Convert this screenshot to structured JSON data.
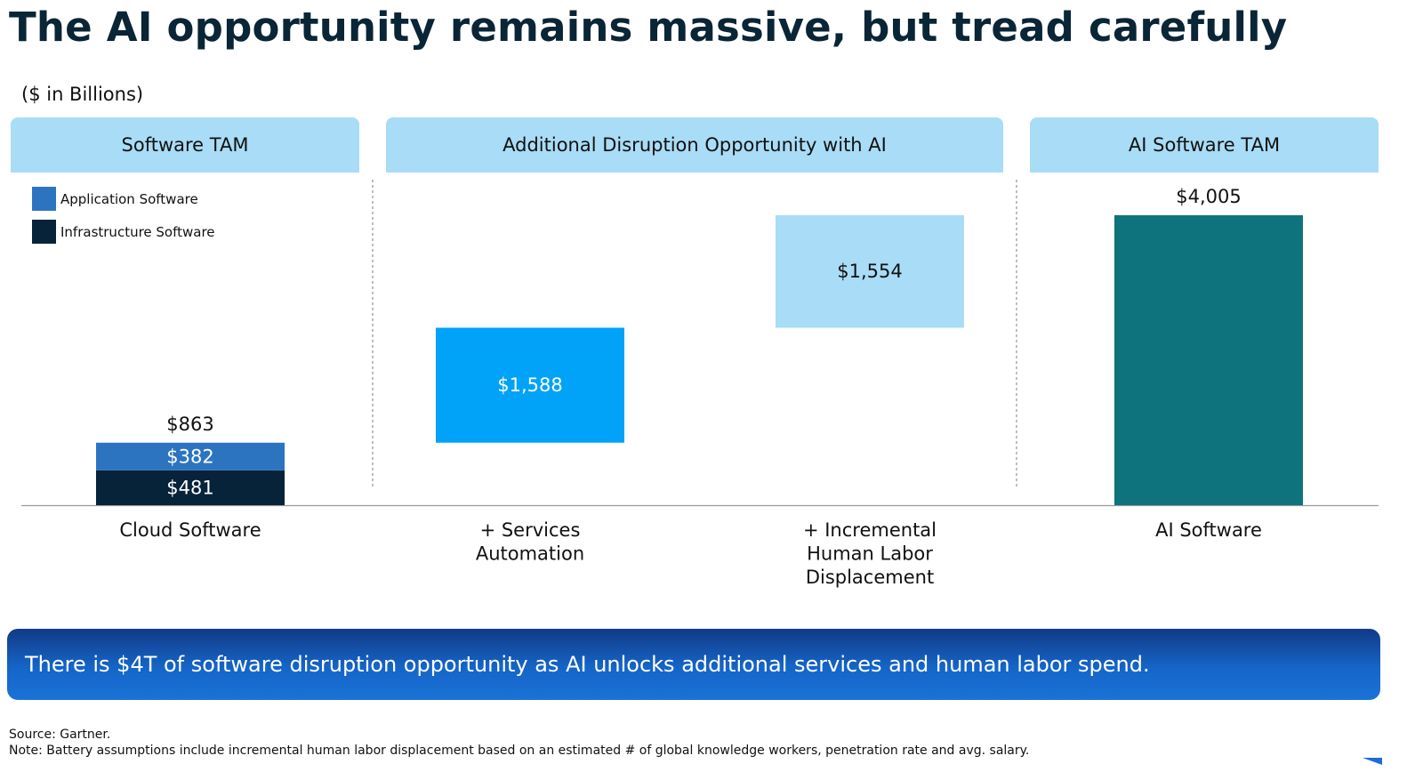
{
  "title": "The AI opportunity remains massive, but tread carefully",
  "units_note": "($ in Billions)",
  "sections": [
    {
      "label": "Software TAM"
    },
    {
      "label": "Additional Disruption Opportunity with AI"
    },
    {
      "label": "AI Software TAM"
    }
  ],
  "legend": [
    {
      "label": "Application Software",
      "color": "#2d74c0"
    },
    {
      "label": "Infrastructure Software",
      "color": "#06233a"
    }
  ],
  "chart_data": {
    "type": "bar",
    "subtype": "waterfall",
    "categories": [
      "Cloud Software",
      "+ Services\nAutomation",
      "+ Incremental\nHuman Labor\nDisplacement",
      "AI Software"
    ],
    "bars": [
      {
        "category": "Cloud Software",
        "base": 0,
        "segments": [
          {
            "series": "Infrastructure Software",
            "value": 481,
            "label": "$481",
            "color": "#06233a",
            "label_color": "#ffffff"
          },
          {
            "series": "Application Software",
            "value": 382,
            "label": "$382",
            "color": "#2d74c0",
            "label_color": "#ffffff"
          }
        ],
        "total_label": "$863"
      },
      {
        "category": "+ Services\nAutomation",
        "base": 863,
        "segments": [
          {
            "value": 1588,
            "label": "$1,588",
            "color": "#00a3f7",
            "label_color": "#ffffff"
          }
        ]
      },
      {
        "category": "+ Incremental\nHuman Labor\nDisplacement",
        "base": 2451,
        "segments": [
          {
            "value": 1554,
            "label": "$1,554",
            "color": "#a9dcf6",
            "label_color": "#111111"
          }
        ]
      },
      {
        "category": "AI Software",
        "base": 0,
        "segments": [
          {
            "value": 4005,
            "color": "#0e737c"
          }
        ],
        "total_label": "$4,005"
      }
    ],
    "ylim": [
      0,
      4005
    ],
    "grid": false,
    "legend": "top-left"
  },
  "callout": "There is $4T of software disruption opportunity as AI unlocks additional services and human labor spend.",
  "footnotes": {
    "source": "Source: Gartner.",
    "note": "Note: Battery assumptions include incremental human labor displacement based on an estimated # of global knowledge workers, penetration rate and avg. salary."
  },
  "colors": {
    "title": "#0a2535",
    "header_bg": "#a9dcf6",
    "callout_bg": "#1565c8"
  }
}
